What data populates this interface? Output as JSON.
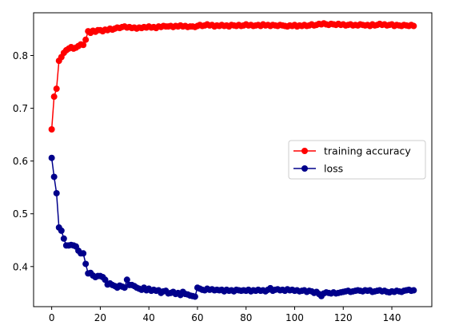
{
  "chart_data": {
    "type": "line",
    "title": "",
    "xlabel": "",
    "ylabel": "",
    "xlim": [
      -7.45,
      156.45
    ],
    "ylim": [
      0.324,
      0.881
    ],
    "xticks": [
      0,
      20,
      40,
      60,
      80,
      100,
      120,
      140
    ],
    "yticks": [
      0.4,
      0.5,
      0.6,
      0.7,
      0.8
    ],
    "grid": false,
    "legend_position": "center-right",
    "series": [
      {
        "name": "training accuracy",
        "color": "#ff0000",
        "marker": "circle",
        "x": [
          0,
          1,
          2,
          3,
          4,
          5,
          6,
          7,
          8,
          9,
          10,
          11,
          12,
          13,
          14,
          15,
          16,
          17,
          18,
          19,
          20,
          21,
          22,
          23,
          24,
          25,
          26,
          27,
          28,
          29,
          30,
          31,
          32,
          33,
          34,
          35,
          36,
          37,
          38,
          39,
          40,
          41,
          42,
          43,
          44,
          45,
          46,
          47,
          48,
          49,
          50,
          51,
          52,
          53,
          54,
          55,
          56,
          57,
          58,
          59,
          60,
          61,
          62,
          63,
          64,
          65,
          66,
          67,
          68,
          69,
          70,
          71,
          72,
          73,
          74,
          75,
          76,
          77,
          78,
          79,
          80,
          81,
          82,
          83,
          84,
          85,
          86,
          87,
          88,
          89,
          90,
          91,
          92,
          93,
          94,
          95,
          96,
          97,
          98,
          99,
          100,
          101,
          102,
          103,
          104,
          105,
          106,
          107,
          108,
          109,
          110,
          111,
          112,
          113,
          114,
          115,
          116,
          117,
          118,
          119,
          120,
          121,
          122,
          123,
          124,
          125,
          126,
          127,
          128,
          129,
          130,
          131,
          132,
          133,
          134,
          135,
          136,
          137,
          138,
          139,
          140,
          141,
          142,
          143,
          144,
          145,
          146,
          147,
          148,
          149
        ],
        "y": [
          0.66,
          0.722,
          0.737,
          0.79,
          0.797,
          0.805,
          0.81,
          0.813,
          0.816,
          0.813,
          0.815,
          0.818,
          0.821,
          0.82,
          0.83,
          0.846,
          0.843,
          0.847,
          0.845,
          0.848,
          0.848,
          0.846,
          0.849,
          0.848,
          0.851,
          0.849,
          0.851,
          0.853,
          0.852,
          0.854,
          0.855,
          0.853,
          0.854,
          0.852,
          0.853,
          0.851,
          0.853,
          0.852,
          0.854,
          0.853,
          0.855,
          0.853,
          0.854,
          0.852,
          0.855,
          0.854,
          0.856,
          0.855,
          0.855,
          0.856,
          0.854,
          0.856,
          0.855,
          0.857,
          0.855,
          0.856,
          0.854,
          0.855,
          0.855,
          0.854,
          0.856,
          0.858,
          0.856,
          0.857,
          0.859,
          0.857,
          0.858,
          0.855,
          0.857,
          0.856,
          0.858,
          0.856,
          0.857,
          0.855,
          0.858,
          0.857,
          0.856,
          0.858,
          0.856,
          0.857,
          0.859,
          0.857,
          0.858,
          0.856,
          0.857,
          0.858,
          0.856,
          0.859,
          0.857,
          0.858,
          0.856,
          0.858,
          0.857,
          0.856,
          0.858,
          0.857,
          0.856,
          0.855,
          0.857,
          0.856,
          0.858,
          0.855,
          0.857,
          0.856,
          0.858,
          0.856,
          0.857,
          0.859,
          0.857,
          0.858,
          0.86,
          0.859,
          0.861,
          0.859,
          0.858,
          0.86,
          0.859,
          0.858,
          0.86,
          0.858,
          0.859,
          0.857,
          0.858,
          0.859,
          0.857,
          0.858,
          0.857,
          0.859,
          0.858,
          0.857,
          0.858,
          0.856,
          0.859,
          0.857,
          0.858,
          0.86,
          0.858,
          0.859,
          0.857,
          0.858,
          0.859,
          0.856,
          0.858,
          0.857,
          0.856,
          0.858,
          0.857,
          0.856,
          0.858,
          0.856
        ]
      },
      {
        "name": "loss",
        "color": "#00008b",
        "marker": "circle",
        "x": [
          0,
          1,
          2,
          3,
          4,
          5,
          6,
          7,
          8,
          9,
          10,
          11,
          12,
          13,
          14,
          15,
          16,
          17,
          18,
          19,
          20,
          21,
          22,
          23,
          24,
          25,
          26,
          27,
          28,
          29,
          30,
          31,
          32,
          33,
          34,
          35,
          36,
          37,
          38,
          39,
          40,
          41,
          42,
          43,
          44,
          45,
          46,
          47,
          48,
          49,
          50,
          51,
          52,
          53,
          54,
          55,
          56,
          57,
          58,
          59,
          60,
          61,
          62,
          63,
          64,
          65,
          66,
          67,
          68,
          69,
          70,
          71,
          72,
          73,
          74,
          75,
          76,
          77,
          78,
          79,
          80,
          81,
          82,
          83,
          84,
          85,
          86,
          87,
          88,
          89,
          90,
          91,
          92,
          93,
          94,
          95,
          96,
          97,
          98,
          99,
          100,
          101,
          102,
          103,
          104,
          105,
          106,
          107,
          108,
          109,
          110,
          111,
          112,
          113,
          114,
          115,
          116,
          117,
          118,
          119,
          120,
          121,
          122,
          123,
          124,
          125,
          126,
          127,
          128,
          129,
          130,
          131,
          132,
          133,
          134,
          135,
          136,
          137,
          138,
          139,
          140,
          141,
          142,
          143,
          144,
          145,
          146,
          147,
          148,
          149
        ],
        "y": [
          0.606,
          0.57,
          0.539,
          0.474,
          0.468,
          0.453,
          0.44,
          0.44,
          0.441,
          0.44,
          0.438,
          0.43,
          0.425,
          0.425,
          0.405,
          0.387,
          0.388,
          0.383,
          0.38,
          0.382,
          0.382,
          0.38,
          0.375,
          0.366,
          0.368,
          0.365,
          0.363,
          0.36,
          0.364,
          0.362,
          0.36,
          0.375,
          0.365,
          0.365,
          0.363,
          0.36,
          0.358,
          0.356,
          0.36,
          0.355,
          0.358,
          0.354,
          0.356,
          0.354,
          0.355,
          0.35,
          0.353,
          0.354,
          0.349,
          0.35,
          0.352,
          0.348,
          0.35,
          0.346,
          0.352,
          0.348,
          0.347,
          0.345,
          0.344,
          0.343,
          0.36,
          0.358,
          0.356,
          0.355,
          0.358,
          0.356,
          0.357,
          0.355,
          0.356,
          0.355,
          0.356,
          0.353,
          0.356,
          0.354,
          0.355,
          0.353,
          0.356,
          0.355,
          0.354,
          0.355,
          0.354,
          0.356,
          0.353,
          0.355,
          0.354,
          0.356,
          0.354,
          0.355,
          0.353,
          0.356,
          0.359,
          0.354,
          0.356,
          0.357,
          0.355,
          0.356,
          0.354,
          0.357,
          0.355,
          0.356,
          0.354,
          0.355,
          0.353,
          0.354,
          0.355,
          0.352,
          0.354,
          0.353,
          0.35,
          0.352,
          0.348,
          0.344,
          0.349,
          0.351,
          0.35,
          0.349,
          0.351,
          0.349,
          0.35,
          0.351,
          0.352,
          0.353,
          0.354,
          0.352,
          0.353,
          0.354,
          0.355,
          0.354,
          0.353,
          0.355,
          0.354,
          0.355,
          0.352,
          0.353,
          0.354,
          0.355,
          0.353,
          0.354,
          0.352,
          0.351,
          0.353,
          0.352,
          0.354,
          0.353,
          0.352,
          0.354,
          0.355,
          0.356,
          0.354,
          0.355
        ]
      }
    ]
  }
}
